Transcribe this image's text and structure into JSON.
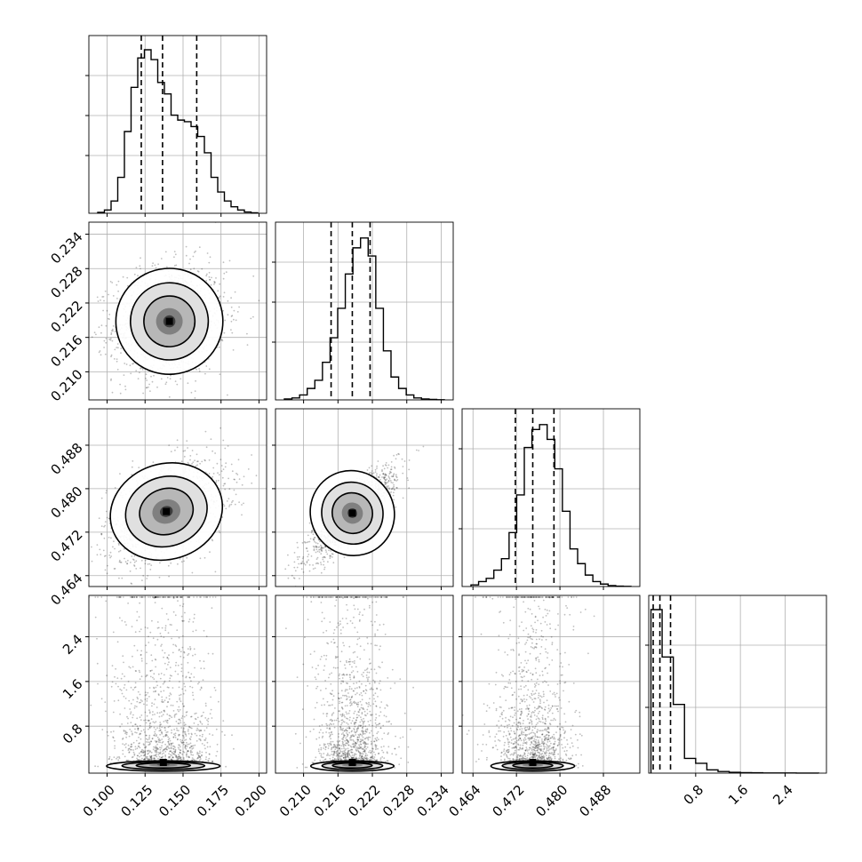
{
  "chart_data": {
    "type": "corner",
    "title": "",
    "grid": true,
    "parameters": [
      {
        "index": 0,
        "range": [
          0.088,
          0.205
        ],
        "ticks": [
          "0.100",
          "0.125",
          "0.150",
          "0.175",
          "0.200"
        ],
        "quantiles": [
          0.1225,
          0.1365,
          0.159
        ],
        "hist": [
          0.006,
          0.02,
          0.075,
          0.22,
          0.5,
          0.77,
          0.95,
          1.0,
          0.94,
          0.8,
          0.73,
          0.6,
          0.57,
          0.56,
          0.53,
          0.47,
          0.37,
          0.22,
          0.13,
          0.075,
          0.04,
          0.02,
          0.008,
          0.003
        ]
      },
      {
        "index": 1,
        "range": [
          0.2051,
          0.2361
        ],
        "ticks": [
          "0.210",
          "0.216",
          "0.222",
          "0.228",
          "0.234"
        ],
        "quantiles": [
          0.2148,
          0.2185,
          0.2216
        ],
        "hist": [
          0.006,
          0.012,
          0.03,
          0.07,
          0.12,
          0.23,
          0.38,
          0.56,
          0.77,
          0.93,
          0.99,
          0.88,
          0.56,
          0.3,
          0.14,
          0.07,
          0.03,
          0.012,
          0.006,
          0.003,
          0.001
        ]
      },
      {
        "index": 2,
        "range": [
          0.462,
          0.4947
        ],
        "ticks": [
          "0.464",
          "0.472",
          "0.480",
          "0.488"
        ],
        "quantiles": [
          0.4718,
          0.475,
          0.4789
        ],
        "hist": [
          0.01,
          0.03,
          0.05,
          0.1,
          0.17,
          0.33,
          0.56,
          0.85,
          0.96,
          0.99,
          0.9,
          0.72,
          0.46,
          0.23,
          0.14,
          0.07,
          0.03,
          0.015,
          0.006,
          0.002,
          0.001
        ]
      },
      {
        "index": 3,
        "range": [
          -0.04,
          3.14
        ],
        "ticks": [
          "0.8",
          "1.6",
          "2.4"
        ],
        "quantiles": [
          0.04,
          0.16,
          0.35
        ],
        "hist": [
          1.0,
          0.71,
          0.42,
          0.09,
          0.06,
          0.02,
          0.01,
          0.005,
          0.003,
          0.002,
          0.001,
          0.001,
          0.001,
          0.0005,
          0.0005
        ]
      }
    ],
    "pair_panels": [
      {
        "x": 0,
        "y": 1,
        "mean": [
          0.141,
          0.2188
        ],
        "sd": [
          0.016,
          0.0042
        ],
        "corr": 0.1
      },
      {
        "x": 0,
        "y": 2,
        "mean": [
          0.139,
          0.4758
        ],
        "sd": [
          0.017,
          0.004
        ],
        "corr": 0.42
      },
      {
        "x": 1,
        "y": 2,
        "mean": [
          0.2185,
          0.4755
        ],
        "sd": [
          0.0033,
          0.0036
        ],
        "corr": 0.85
      },
      {
        "x": 0,
        "y": 3,
        "mean": [
          0.137,
          0.28
        ],
        "sd": [
          0.017,
          0.3
        ],
        "corr": 0.1
      },
      {
        "x": 1,
        "y": 3,
        "mean": [
          0.2185,
          0.28
        ],
        "sd": [
          0.0033,
          0.3
        ],
        "corr": 0.05
      },
      {
        "x": 2,
        "y": 3,
        "mean": [
          0.475,
          0.28
        ],
        "sd": [
          0.0035,
          0.3
        ],
        "corr": 0.05
      }
    ]
  },
  "colors": {
    "axes": "#000000",
    "grid": "#b0b0b0",
    "points": "#000000",
    "contour_fill": [
      "#ffffff",
      "#dedede",
      "#b4b4b4",
      "#7c7c7c",
      "#3a3a3a",
      "#000000"
    ]
  }
}
